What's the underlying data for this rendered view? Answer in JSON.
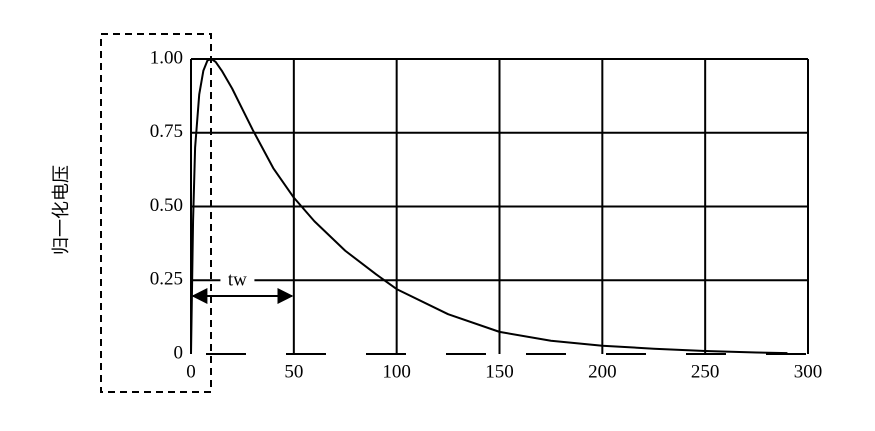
{
  "chart_data": {
    "type": "line",
    "y_label": "归一化电压",
    "annotation": "tw",
    "x": [
      0,
      1,
      2,
      4,
      6,
      8,
      10,
      12,
      15,
      20,
      25,
      30,
      40,
      50,
      60,
      75,
      90,
      100,
      125,
      150,
      175,
      200,
      225,
      250,
      275,
      290
    ],
    "series": [
      {
        "color": "#000000",
        "values": [
          0,
          0.45,
          0.7,
          0.88,
          0.96,
          0.995,
          1.0,
          0.99,
          0.96,
          0.9,
          0.83,
          0.76,
          0.63,
          0.53,
          0.45,
          0.35,
          0.27,
          0.22,
          0.135,
          0.075,
          0.045,
          0.028,
          0.018,
          0.01,
          0.005,
          0.003
        ]
      }
    ],
    "xlim": [
      0,
      300
    ],
    "xticks": [
      0,
      50,
      100,
      150,
      200,
      250,
      300
    ],
    "ylim": [
      0,
      1
    ],
    "yticks": [
      0,
      {
        "value": 0.25,
        "label": "0.25"
      },
      {
        "value": 0.5,
        "label": "0.50"
      },
      {
        "value": 0.75,
        "label": "0.75"
      },
      {
        "value": 1,
        "label": "1.00"
      }
    ],
    "grid": true
  }
}
